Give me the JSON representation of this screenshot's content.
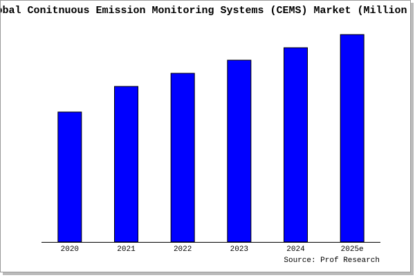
{
  "chart_data": {
    "type": "bar",
    "title": "Global Conitnuous Emission Monitoring Systems (CEMS) Market (Million USD)",
    "categories": [
      "2020",
      "2021",
      "2022",
      "2023",
      "2024",
      "2025e"
    ],
    "values": [
      188,
      225,
      244,
      263,
      281,
      300
    ],
    "color": "#0000ff",
    "ylim": [
      0,
      300
    ],
    "source": "Source: Prof Research"
  }
}
